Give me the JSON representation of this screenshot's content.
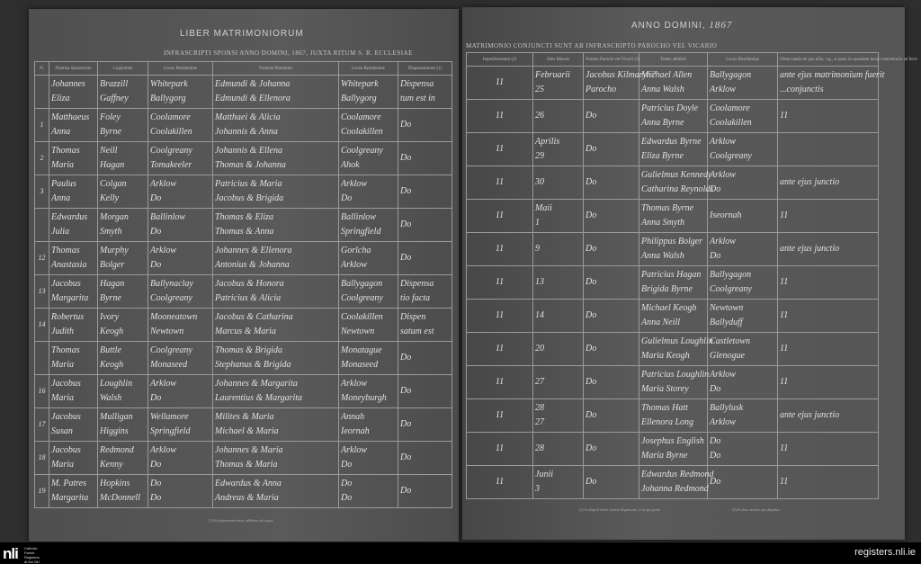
{
  "left_page": {
    "title": "LIBER MATRIMONIORUM",
    "band": "INFRASCRIPTI SPONSI ANNO DOMINI, 1867, JUXTA RITUM S. R. ECCLESIAE",
    "headers": [
      "N.",
      "Nomina Sponsorum",
      "Cognomen",
      "Locus Residentiae",
      "Nomina Parentum",
      "Locus Residentiae",
      "Dispensationes (1)"
    ],
    "rows": [
      {
        "no": "",
        "names": [
          "Johannes",
          "Eliza"
        ],
        "cog": [
          "Brazzill",
          "Gaffney"
        ],
        "res": [
          "Whitepark",
          "Ballygorg"
        ],
        "par": [
          "Edmundi & Johanna",
          "Edmundi & Ellenora"
        ],
        "res2": [
          "Whitepark",
          "Ballygorg"
        ],
        "disp": [
          "Dispensa",
          "tum est in"
        ]
      },
      {
        "no": "1",
        "names": [
          "Matthaeus",
          "Anna"
        ],
        "cog": [
          "Foley",
          "Byrne"
        ],
        "res": [
          "Coolamore",
          "Coolakillen"
        ],
        "par": [
          "Matthaei & Alicia",
          "Johannis & Anna"
        ],
        "res2": [
          "Coolamore",
          "Coolakillen"
        ],
        "disp": [
          "Do",
          ""
        ]
      },
      {
        "no": "2",
        "names": [
          "Thomas",
          "Maria"
        ],
        "cog": [
          "Neill",
          "Hagan"
        ],
        "res": [
          "Coolgreany",
          "Tomakeeler"
        ],
        "par": [
          "Johannis & Ellena",
          "Thomas & Johanna"
        ],
        "res2": [
          "Coolgreany",
          "Ahok"
        ],
        "disp": [
          "Do",
          ""
        ]
      },
      {
        "no": "3",
        "names": [
          "Paulus",
          "Anna"
        ],
        "cog": [
          "Colgan",
          "Kelly"
        ],
        "res": [
          "Arklow",
          "Do"
        ],
        "par": [
          "Patricius & Maria",
          "Jacobus & Brigida"
        ],
        "res2": [
          "Arklow",
          "Do"
        ],
        "disp": [
          "Do",
          ""
        ]
      },
      {
        "no": "",
        "names": [
          "Edwardus",
          "Julia"
        ],
        "cog": [
          "Morgan",
          "Smyth"
        ],
        "res": [
          "Ballinlow",
          "Do"
        ],
        "par": [
          "Thomas & Eliza",
          "Thomas & Anna"
        ],
        "res2": [
          "Ballinlow",
          "Springfield"
        ],
        "disp": [
          "Do",
          ""
        ]
      },
      {
        "no": "12",
        "names": [
          "Thomas",
          "Anastasia"
        ],
        "cog": [
          "Murphy",
          "Bolger"
        ],
        "res": [
          "Arklow",
          "Do"
        ],
        "par": [
          "Johannes & Ellenora",
          "Antonius & Johanna"
        ],
        "res2": [
          "Gorlcha",
          "Arklow"
        ],
        "disp": [
          "Do",
          ""
        ]
      },
      {
        "no": "13",
        "names": [
          "Jacobus",
          "Margarita"
        ],
        "cog": [
          "Hagan",
          "Byrne"
        ],
        "res": [
          "Ballynaclay",
          "Coolgreany"
        ],
        "par": [
          "Jacobus & Honora",
          "Patricius & Alicia"
        ],
        "res2": [
          "Ballygagon",
          "Coolgreany"
        ],
        "disp": [
          "Dispensa",
          "tio facta"
        ]
      },
      {
        "no": "14",
        "names": [
          "Robertus",
          "Judith"
        ],
        "cog": [
          "Ivory",
          "Keogh"
        ],
        "res": [
          "Mooneatown",
          "Newtown"
        ],
        "par": [
          "Jacobus & Catharina",
          "Marcus & Maria"
        ],
        "res2": [
          "Coolakillen",
          "Newtown"
        ],
        "disp": [
          "Dispen",
          "satum est"
        ]
      },
      {
        "no": "",
        "names": [
          "Thomas",
          "Maria"
        ],
        "cog": [
          "Buttle",
          "Keogh"
        ],
        "res": [
          "Coolgreany",
          "Monaseed"
        ],
        "par": [
          "Thomas & Brigida",
          "Stephanus & Brigida"
        ],
        "res2": [
          "Monatague",
          "Monaseed"
        ],
        "disp": [
          "Do",
          ""
        ]
      },
      {
        "no": "16",
        "names": [
          "Jacobus",
          "Maria"
        ],
        "cog": [
          "Loughlin",
          "Walsh"
        ],
        "res": [
          "Arklow",
          "Do"
        ],
        "par": [
          "Johannes & Margarita",
          "Laurentius & Margarita"
        ],
        "res2": [
          "Arklow",
          "Moneyburgh"
        ],
        "disp": [
          "Do",
          ""
        ]
      },
      {
        "no": "17",
        "names": [
          "Jacobus",
          "Susan"
        ],
        "cog": [
          "Mulligan",
          "Higgins"
        ],
        "res": [
          "Wellamore",
          "Springfield"
        ],
        "par": [
          "Milites & Maria",
          "Michael & Maria"
        ],
        "res2": [
          "Annah",
          "Ieornah"
        ],
        "disp": [
          "Do",
          ""
        ]
      },
      {
        "no": "18",
        "names": [
          "Jacobus",
          "Maria"
        ],
        "cog": [
          "Redmond",
          "Kenny"
        ],
        "res": [
          "Arklow",
          "Do"
        ],
        "par": [
          "Johannes & Maria",
          "Thomas & Maria"
        ],
        "res2": [
          "Arklow",
          "Do"
        ],
        "disp": [
          "Do",
          ""
        ]
      },
      {
        "no": "19",
        "names": [
          "M. Patres",
          "Margarita"
        ],
        "cog": [
          "Hopkins",
          "McDonnell"
        ],
        "res": [
          "Do",
          "Do"
        ],
        "par": [
          "Edwardus & Anna",
          "Andreas & Maria"
        ],
        "res2": [
          "Do",
          "Do"
        ],
        "disp": [
          "Do",
          ""
        ]
      }
    ],
    "footnote": "(1) Si dispensatum fuerit, adhibeas ad n gata."
  },
  "right_page": {
    "title": "ANNO DOMINI,",
    "year": "1867",
    "band": "MATRIMONIO CONJUNCTI SUNT AB INFRASCRIPTO PAROCHO VEL VICARIO",
    "headers": [
      "Impedimentum (2)",
      "Dies Mensis",
      "Nomen Parochi vel Vicarii (3)",
      "Testes adhibiti",
      "Locus Residentiae",
      "Observanda de quo aliis, v.g., si ipsis sit quaedam banni matrimonio ad ferre"
    ],
    "rows": [
      {
        "imp": "11",
        "dies": [
          "Februarii",
          "25"
        ],
        "par": [
          "Jacobus Kilmaryn?",
          "Parocho"
        ],
        "test": [
          "Michael Allen",
          "Anna Walsh"
        ],
        "loc": [
          "Ballygagon",
          "Arklow"
        ],
        "obs": [
          "ante ejus matrimonium fuerit",
          "...conjunctis"
        ]
      },
      {
        "imp": "11",
        "dies": [
          "",
          "26"
        ],
        "par": [
          "Do",
          ""
        ],
        "test": [
          "Patricius Doyle",
          "Anna Byrne"
        ],
        "loc": [
          "Coolamore",
          "Coolakillen"
        ],
        "obs": [
          "11",
          ""
        ]
      },
      {
        "imp": "11",
        "dies": [
          "Aprilis",
          "29"
        ],
        "par": [
          "Do",
          ""
        ],
        "test": [
          "Edwardus Byrne",
          "Eliza Byrne"
        ],
        "loc": [
          "Arklow",
          "Coolgreany"
        ],
        "obs": [
          "",
          ""
        ]
      },
      {
        "imp": "11",
        "dies": [
          "",
          "30"
        ],
        "par": [
          "Do",
          ""
        ],
        "test": [
          "Gulielmus Kennedy",
          "Catharina Reynolds"
        ],
        "loc": [
          "Arklow",
          "Do"
        ],
        "obs": [
          "ante ejus junctio",
          ""
        ]
      },
      {
        "imp": "11",
        "dies": [
          "Maii",
          "1"
        ],
        "par": [
          "Do",
          ""
        ],
        "test": [
          "Thomas Byrne",
          "Anna Smyth"
        ],
        "loc": [
          "Iseornah",
          ""
        ],
        "obs": [
          "11",
          ""
        ]
      },
      {
        "imp": "11",
        "dies": [
          "",
          "9"
        ],
        "par": [
          "Do",
          ""
        ],
        "test": [
          "Philippus Bolger",
          "Anna Walsh"
        ],
        "loc": [
          "Arklow",
          "Do"
        ],
        "obs": [
          "ante ejus junctio",
          ""
        ]
      },
      {
        "imp": "11",
        "dies": [
          "",
          "13"
        ],
        "par": [
          "Do",
          ""
        ],
        "test": [
          "Patricius Hagan",
          "Brigida Byrne"
        ],
        "loc": [
          "Ballygagon",
          "Coolgreany"
        ],
        "obs": [
          "11",
          ""
        ]
      },
      {
        "imp": "11",
        "dies": [
          "",
          "14"
        ],
        "par": [
          "Do",
          ""
        ],
        "test": [
          "Michael Keogh",
          "Anna Neill"
        ],
        "loc": [
          "Newtown",
          "Ballyduff"
        ],
        "obs": [
          "11",
          ""
        ]
      },
      {
        "imp": "11",
        "dies": [
          "",
          "20"
        ],
        "par": [
          "Do",
          ""
        ],
        "test": [
          "Gulielmus Loughlin",
          "Maria Keogh"
        ],
        "loc": [
          "Castletown",
          "Glenogue"
        ],
        "obs": [
          "11",
          ""
        ]
      },
      {
        "imp": "11",
        "dies": [
          "",
          "27"
        ],
        "par": [
          "Do",
          ""
        ],
        "test": [
          "Patricius Loughlin",
          "Maria Storey"
        ],
        "loc": [
          "Arklow",
          "Do"
        ],
        "obs": [
          "11",
          ""
        ]
      },
      {
        "imp": "11",
        "dies": [
          "28",
          "27"
        ],
        "par": [
          "Do",
          ""
        ],
        "test": [
          "Thomas Hatt",
          "Ellenora Long"
        ],
        "loc": [
          "Ballylusk",
          "Arklow"
        ],
        "obs": [
          "ante ejus junctio",
          ""
        ]
      },
      {
        "imp": "11",
        "dies": [
          "",
          "28"
        ],
        "par": [
          "Do",
          ""
        ],
        "test": [
          "Josephus English",
          "Maria Byrne"
        ],
        "loc": [
          "Do",
          "Do"
        ],
        "obs": [
          "11",
          ""
        ]
      },
      {
        "imp": "11",
        "dies": [
          "Junii",
          "3"
        ],
        "par": [
          "Do",
          ""
        ],
        "test": [
          "Edwardus Redmond",
          "Johanna Redmond"
        ],
        "loc": [
          "Do",
          ""
        ],
        "obs": [
          "11",
          ""
        ]
      }
    ],
    "footnote_left": "(2) Si aliquod fuerit, notetur dispensatio, et in quo gradu.",
    "footnote_right": "(3) Si alius, notetur quo deputato."
  },
  "footer": {
    "logo": "nli",
    "logo_sub": "Catholic Parish Registers at the NLI",
    "site": "registers.nli.ie"
  }
}
